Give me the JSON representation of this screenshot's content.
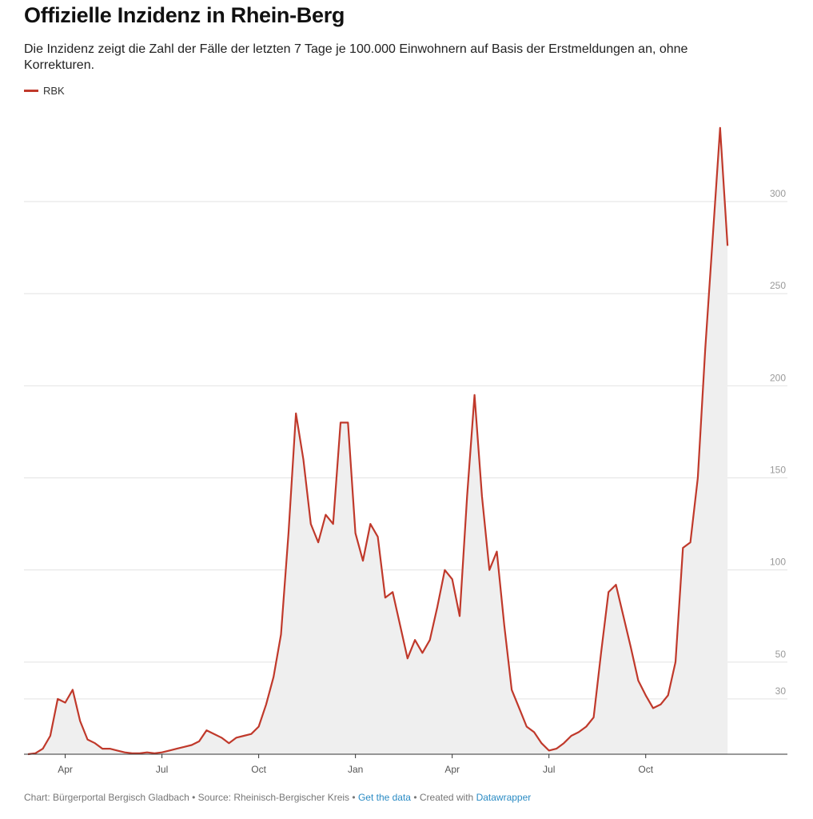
{
  "chart_data": {
    "type": "area-line",
    "title": "Offizielle Inzidenz in Rhein-Berg",
    "subtitle": "Die Inzidenz zeigt die Zahl der Fälle der letzten 7 Tage je 100.000 Einwohnern auf Basis der Erstmeldungen an, ohne Korrekturen.",
    "categories": [
      null,
      null,
      null,
      null,
      null,
      "Apr",
      null,
      null,
      null,
      null,
      null,
      null,
      null,
      null,
      null,
      null,
      null,
      null,
      "Jul",
      null,
      null,
      null,
      null,
      null,
      null,
      null,
      null,
      null,
      null,
      null,
      null,
      "Oct",
      null,
      null,
      null,
      null,
      null,
      null,
      null,
      null,
      null,
      null,
      null,
      null,
      "Jan",
      null,
      null,
      null,
      null,
      null,
      null,
      null,
      null,
      null,
      null,
      null,
      null,
      "Apr",
      null,
      null,
      null,
      null,
      null,
      null,
      null,
      null,
      null,
      null,
      null,
      null,
      "Jul",
      null,
      null,
      null,
      null,
      null,
      null,
      null,
      null,
      null,
      null,
      null,
      null,
      "Oct",
      null,
      null,
      null,
      null,
      null,
      null,
      null,
      null,
      null,
      null,
      null
    ],
    "series": [
      {
        "name": "RBK",
        "color": "#c0392b",
        "values": [
          0,
          0.5,
          3,
          10,
          30,
          28,
          35,
          18,
          8,
          6,
          3,
          3,
          2,
          1,
          0.5,
          0.5,
          1,
          0.5,
          1,
          2,
          3,
          4,
          5,
          7,
          13,
          11,
          9,
          6,
          9,
          10,
          11,
          15,
          27,
          42,
          65,
          120,
          185,
          160,
          125,
          115,
          130,
          125,
          180,
          180,
          120,
          105,
          125,
          118,
          85,
          88,
          70,
          52,
          62,
          55,
          62,
          80,
          100,
          95,
          75,
          140,
          195,
          140,
          100,
          110,
          70,
          35,
          25,
          15,
          12,
          6,
          2,
          3,
          6,
          10,
          12,
          15,
          20,
          55,
          88,
          92,
          75,
          58,
          40,
          32,
          25,
          27,
          32,
          50,
          112,
          115,
          150,
          220,
          280,
          340,
          276
        ]
      }
    ],
    "ylim": [
      0,
      300
    ],
    "yticks": [
      30,
      50,
      100,
      150,
      200,
      250,
      300
    ],
    "grid": true,
    "footer": {
      "prefix": "Chart: Bürgerportal Bergisch Gladbach • Source: Rheinisch-Bergischer Kreis •",
      "link1": "Get the data",
      "middle": "• Created with",
      "link2": "Datawrapper"
    }
  }
}
